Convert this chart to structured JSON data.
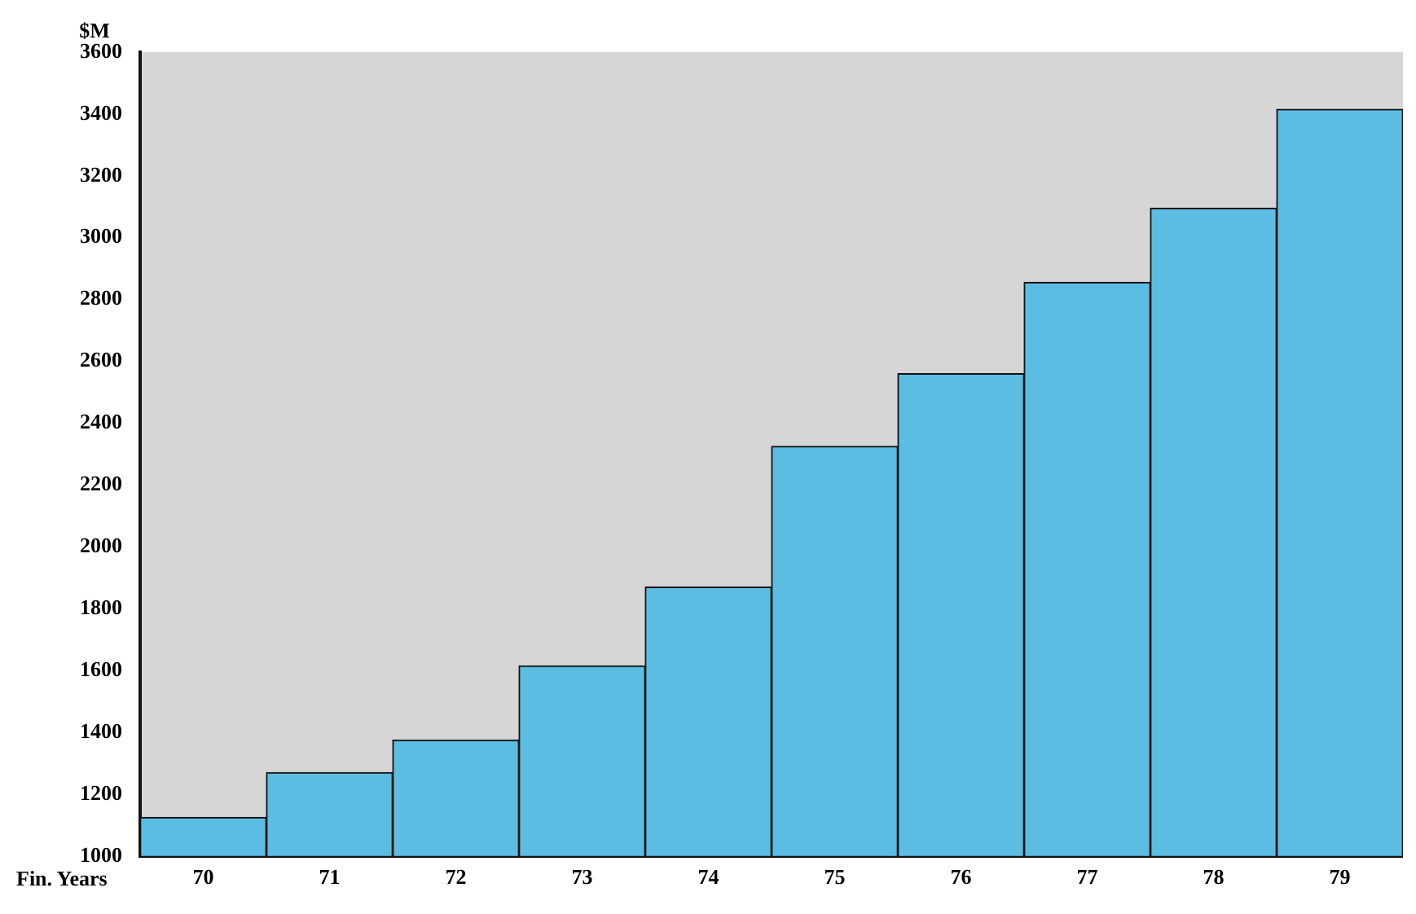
{
  "chart_data": {
    "type": "bar",
    "ylabel": "$M",
    "xlabel": "Fin. Years",
    "categories": [
      "70",
      "71",
      "72",
      "73",
      "74",
      "75",
      "76",
      "77",
      "78",
      "79"
    ],
    "values": [
      1125,
      1270,
      1375,
      1615,
      1870,
      2325,
      2560,
      2855,
      3095,
      3415
    ],
    "color": "#5cbde3",
    "ylim": [
      1000,
      3600
    ],
    "yticks": [
      1000,
      1200,
      1400,
      1600,
      1800,
      2000,
      2200,
      2400,
      2600,
      2800,
      3000,
      3200,
      3400,
      3600
    ],
    "grid": false,
    "legend": false
  }
}
